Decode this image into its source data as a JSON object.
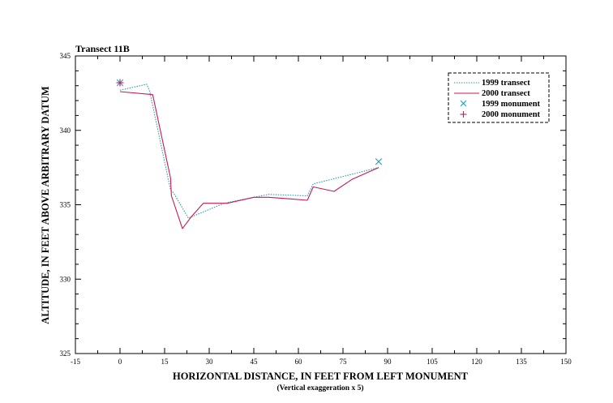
{
  "chart_data": {
    "type": "line",
    "title": "Transect 11B",
    "xlabel": "HORIZONTAL DISTANCE, IN FEET FROM LEFT MONUMENT",
    "xlabel_note": "(Vertical exaggeration x 5)",
    "ylabel": "ALTITUDE, IN FEET ABOVE ARBITRARY DATUM",
    "xlim": [
      -15,
      150
    ],
    "ylim": [
      325,
      345
    ],
    "xticks": [
      -15,
      0,
      15,
      30,
      45,
      60,
      75,
      90,
      105,
      120,
      135,
      150
    ],
    "yticks": [
      325,
      330,
      335,
      340,
      345
    ],
    "legend_position": "top-right",
    "series": [
      {
        "name": "1999 transect",
        "color": "#2a9aa8",
        "style": "dotted",
        "x": [
          0,
          9,
          10,
          17,
          18,
          23,
          35,
          50,
          63,
          65,
          87
        ],
        "y": [
          342.7,
          343.1,
          342.6,
          336.0,
          335.8,
          334.1,
          335.1,
          335.7,
          335.6,
          336.4,
          337.5
        ]
      },
      {
        "name": "2000 transect",
        "color": "#c8195a",
        "style": "solid",
        "x": [
          0,
          11,
          17,
          17.3,
          21,
          24,
          28,
          36,
          45,
          50,
          57,
          63,
          65,
          72,
          78,
          87
        ],
        "y": [
          342.6,
          342.4,
          336.8,
          335.6,
          333.4,
          334.2,
          335.1,
          335.1,
          335.5,
          335.5,
          335.4,
          335.3,
          336.2,
          335.9,
          336.7,
          337.5
        ]
      }
    ],
    "points": [
      {
        "name": "1999 monument",
        "marker": "x",
        "color": "#2a9aa8",
        "x": 87,
        "y": 337.9
      },
      {
        "name": "2000 monument",
        "marker": "plus",
        "color": "#c8195a",
        "x": 0,
        "y": 343.2
      }
    ],
    "monument_1999_left": {
      "x": 0,
      "y": 343.2
    }
  }
}
